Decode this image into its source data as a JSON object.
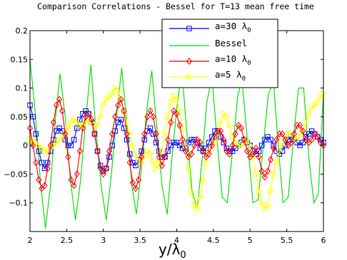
{
  "chart_data": {
    "type": "line",
    "title": "Comparison Correlations - Bessel for T=13 mean free time",
    "xlabel": "y/λ",
    "xlabel_subscript": "0",
    "ylabel": "",
    "xlim": [
      2,
      6
    ],
    "ylim": [
      -0.15,
      0.2
    ],
    "x_ticks": [
      2,
      2.5,
      3,
      3.5,
      4,
      4.5,
      5,
      5.5,
      6
    ],
    "x_tick_labels": [
      "2",
      "2.5",
      "3",
      "3.5",
      "4",
      "4.5",
      "5",
      "5.5",
      "6"
    ],
    "y_ticks": [
      -0.1,
      -0.05,
      0,
      0.05,
      0.1,
      0.15,
      0.2
    ],
    "y_tick_labels": [
      "−0.1",
      "−0.05",
      "0",
      "0.05",
      "0.1",
      "0.15",
      "0.2"
    ],
    "grid": false,
    "legend_position": "top-right",
    "series": [
      {
        "name": "a=30 λ0",
        "legend_text": "a=30 λ",
        "legend_sub": "0",
        "color": "#0000ff",
        "marker": "square",
        "x": [
          2.0,
          2.04,
          2.08,
          2.12,
          2.16,
          2.2,
          2.24,
          2.28,
          2.32,
          2.36,
          2.4,
          2.44,
          2.48,
          2.52,
          2.56,
          2.6,
          2.64,
          2.68,
          2.72,
          2.76,
          2.8,
          2.84,
          2.88,
          2.92,
          2.96,
          3.0,
          3.04,
          3.08,
          3.12,
          3.16,
          3.2,
          3.24,
          3.28,
          3.32,
          3.36,
          3.4,
          3.44,
          3.48,
          3.52,
          3.56,
          3.6,
          3.64,
          3.68,
          3.72,
          3.76,
          3.8,
          3.84,
          3.88,
          3.92,
          3.96,
          4.0,
          4.04,
          4.08,
          4.12,
          4.16,
          4.2,
          4.24,
          4.28,
          4.32,
          4.36,
          4.4,
          4.44,
          4.48,
          4.52,
          4.56,
          4.6,
          4.64,
          4.68,
          4.72,
          4.76,
          4.8,
          4.84,
          4.88,
          4.92,
          4.96,
          5.0,
          5.04,
          5.08,
          5.12,
          5.16,
          5.2,
          5.24,
          5.28,
          5.32,
          5.36,
          5.4,
          5.44,
          5.48,
          5.52,
          5.56,
          5.6,
          5.64,
          5.68,
          5.72,
          5.76,
          5.8,
          5.84,
          5.88,
          5.92,
          5.96,
          6.0
        ],
        "y": [
          0.07,
          0.05,
          0.02,
          -0.01,
          -0.03,
          -0.04,
          -0.03,
          -0.01,
          0.01,
          0.025,
          0.03,
          0.025,
          0.01,
          0.0,
          0.0,
          0.01,
          0.03,
          0.045,
          0.055,
          0.06,
          0.055,
          0.04,
          0.02,
          -0.01,
          -0.035,
          -0.045,
          -0.04,
          -0.02,
          0.0,
          0.025,
          0.04,
          0.045,
          0.03,
          0.01,
          -0.015,
          -0.03,
          -0.035,
          -0.025,
          -0.01,
          0.01,
          0.025,
          0.03,
          0.02,
          0.005,
          -0.01,
          -0.02,
          -0.02,
          -0.01,
          0.0,
          0.005,
          0.005,
          0.0,
          -0.005,
          -0.005,
          0.005,
          0.01,
          0.01,
          0.005,
          -0.005,
          -0.01,
          -0.005,
          0.005,
          0.015,
          0.025,
          0.025,
          0.015,
          0.005,
          -0.005,
          -0.01,
          -0.01,
          -0.005,
          0.0,
          0.005,
          0.01,
          0.005,
          0.0,
          -0.01,
          -0.015,
          -0.01,
          0.0,
          0.01,
          0.015,
          0.01,
          0.0,
          -0.01,
          -0.015,
          -0.01,
          0.0,
          0.01,
          0.015,
          0.01,
          0.005,
          0.0,
          0.005,
          0.015,
          0.02,
          0.025,
          0.02,
          0.015,
          0.01,
          0.005
        ]
      },
      {
        "name": "Bessel",
        "legend_text": "Bessel",
        "legend_sub": "",
        "color": "#00dd00",
        "marker": "none",
        "x": [
          2.0,
          2.07,
          2.14,
          2.21,
          2.28,
          2.35,
          2.41,
          2.48,
          2.55,
          2.62,
          2.69,
          2.76,
          2.83,
          2.89,
          2.97,
          3.04,
          3.11,
          3.18,
          3.25,
          3.32,
          3.39,
          3.45,
          3.52,
          3.59,
          3.66,
          3.73,
          3.8,
          3.87,
          3.93,
          4.0,
          4.07,
          4.14,
          4.21,
          4.28,
          4.35,
          4.41,
          4.48,
          4.55,
          4.62,
          4.69,
          4.76,
          4.83,
          4.89,
          4.97,
          5.04,
          5.11,
          5.18,
          5.25,
          5.32,
          5.39,
          5.45,
          5.52,
          5.59,
          5.66,
          5.73,
          5.8,
          5.87,
          5.93,
          6.0
        ],
        "y": [
          0.15,
          0.06,
          -0.06,
          -0.145,
          -0.07,
          0.05,
          0.125,
          0.05,
          -0.06,
          -0.13,
          -0.06,
          0.045,
          0.14,
          0.04,
          -0.07,
          -0.13,
          -0.05,
          0.05,
          0.135,
          0.04,
          -0.07,
          -0.12,
          -0.04,
          0.06,
          0.13,
          0.03,
          -0.07,
          -0.12,
          -0.03,
          0.065,
          0.13,
          0.02,
          -0.08,
          -0.11,
          -0.02,
          0.075,
          0.12,
          0.01,
          -0.09,
          -0.1,
          -0.01,
          0.085,
          0.115,
          0.0,
          -0.1,
          -0.095,
          0.0,
          0.09,
          0.11,
          -0.01,
          -0.1,
          -0.09,
          0.01,
          0.1,
          0.1,
          -0.02,
          -0.1,
          -0.085,
          0.09
        ]
      },
      {
        "name": "a=10 λ0",
        "legend_text": "a=10 λ",
        "legend_sub": "0",
        "color": "#ff0000",
        "marker": "diamond",
        "x": [
          2.0,
          2.04,
          2.08,
          2.12,
          2.16,
          2.2,
          2.24,
          2.28,
          2.32,
          2.36,
          2.4,
          2.44,
          2.48,
          2.52,
          2.56,
          2.6,
          2.64,
          2.68,
          2.72,
          2.76,
          2.8,
          2.84,
          2.88,
          2.92,
          2.96,
          3.0,
          3.04,
          3.08,
          3.12,
          3.16,
          3.2,
          3.24,
          3.28,
          3.32,
          3.36,
          3.4,
          3.44,
          3.48,
          3.52,
          3.56,
          3.6,
          3.64,
          3.68,
          3.72,
          3.76,
          3.8,
          3.84,
          3.88,
          3.92,
          3.96,
          4.0,
          4.04,
          4.08,
          4.12,
          4.16,
          4.2,
          4.24,
          4.28,
          4.32,
          4.36,
          4.4,
          4.44,
          4.48,
          4.52,
          4.56,
          4.6,
          4.64,
          4.68,
          4.72,
          4.76,
          4.8,
          4.84,
          4.88,
          4.92,
          4.96,
          5.0,
          5.04,
          5.08,
          5.12,
          5.16,
          5.2,
          5.24,
          5.28,
          5.32,
          5.36,
          5.4,
          5.44,
          5.48,
          5.52,
          5.56,
          5.6,
          5.64,
          5.68,
          5.72,
          5.76,
          5.8,
          5.84,
          5.88,
          5.92,
          5.96,
          6.0
        ],
        "y": [
          0.03,
          0.0,
          -0.03,
          -0.06,
          -0.075,
          -0.07,
          -0.04,
          0.0,
          0.04,
          0.07,
          0.08,
          0.06,
          0.02,
          -0.02,
          -0.06,
          -0.07,
          -0.05,
          -0.01,
          0.03,
          0.05,
          0.055,
          0.045,
          0.02,
          -0.01,
          -0.04,
          -0.05,
          -0.04,
          -0.01,
          0.02,
          0.05,
          0.07,
          0.08,
          0.06,
          0.02,
          -0.03,
          -0.065,
          -0.075,
          -0.06,
          -0.02,
          0.02,
          0.05,
          0.06,
          0.05,
          0.02,
          -0.02,
          -0.035,
          -0.02,
          0.01,
          0.04,
          0.06,
          0.055,
          0.035,
          0.01,
          -0.01,
          -0.02,
          -0.015,
          0.0,
          0.01,
          0.005,
          -0.01,
          -0.02,
          -0.015,
          0.0,
          0.015,
          0.025,
          0.025,
          0.01,
          -0.01,
          -0.015,
          0.0,
          0.02,
          0.035,
          0.03,
          0.01,
          -0.01,
          -0.02,
          -0.015,
          -0.005,
          -0.02,
          -0.045,
          -0.055,
          -0.045,
          -0.025,
          -0.005,
          0.01,
          0.02,
          0.02,
          0.01,
          0.0,
          0.005,
          0.02,
          0.035,
          0.035,
          0.025,
          0.01,
          0.005,
          0.01,
          0.02,
          0.015,
          0.005,
          0.0
        ]
      },
      {
        "name": "a=5 λ0",
        "legend_text": "a=5 λ",
        "legend_sub": "0",
        "color": "#ffff00",
        "marker": "triangle-right",
        "x": [
          2.0,
          2.04,
          2.08,
          2.12,
          2.16,
          2.2,
          2.24,
          2.28,
          2.32,
          2.36,
          2.4,
          2.44,
          2.48,
          2.52,
          2.56,
          2.6,
          2.64,
          2.68,
          2.72,
          2.76,
          2.8,
          2.84,
          2.88,
          2.92,
          2.96,
          3.0,
          3.04,
          3.08,
          3.12,
          3.16,
          3.2,
          3.24,
          3.28,
          3.32,
          3.36,
          3.4,
          3.44,
          3.48,
          3.52,
          3.56,
          3.6,
          3.64,
          3.68,
          3.72,
          3.76,
          3.8,
          3.84,
          3.88,
          3.92,
          3.96,
          4.0,
          4.04,
          4.08,
          4.12,
          4.16,
          4.2,
          4.24,
          4.28,
          4.32,
          4.36,
          4.4,
          4.44,
          4.48,
          4.52,
          4.56,
          4.6,
          4.64,
          4.68,
          4.72,
          4.76,
          4.8,
          4.84,
          4.88,
          4.92,
          4.96,
          5.0,
          5.04,
          5.08,
          5.12,
          5.16,
          5.2,
          5.24,
          5.28,
          5.32,
          5.36,
          5.4,
          5.44,
          5.48,
          5.52,
          5.56,
          5.6,
          5.64,
          5.68,
          5.72,
          5.76,
          5.8,
          5.84,
          5.88,
          5.92,
          5.96,
          6.0
        ],
        "y": [
          0.01,
          0.01,
          0.005,
          0.0,
          -0.005,
          -0.01,
          -0.01,
          -0.005,
          0.0,
          0.005,
          0.01,
          0.015,
          0.02,
          0.03,
          0.04,
          0.045,
          0.04,
          0.035,
          0.035,
          0.04,
          0.045,
          0.04,
          0.03,
          0.035,
          0.05,
          0.07,
          0.08,
          0.085,
          0.09,
          0.1,
          0.095,
          0.08,
          0.06,
          0.04,
          0.02,
          0.0,
          -0.015,
          -0.025,
          -0.03,
          -0.02,
          -0.01,
          -0.015,
          -0.03,
          -0.04,
          -0.03,
          -0.01,
          0.02,
          0.05,
          0.075,
          0.085,
          0.08,
          0.06,
          0.03,
          0.0,
          -0.04,
          -0.08,
          -0.105,
          -0.11,
          -0.09,
          -0.06,
          -0.03,
          -0.01,
          0.0,
          0.005,
          0.02,
          0.04,
          0.055,
          0.05,
          0.035,
          0.015,
          0.005,
          0.0,
          0.0,
          0.005,
          0.01,
          0.0,
          -0.02,
          -0.05,
          -0.08,
          -0.1,
          -0.11,
          -0.105,
          -0.08,
          -0.05,
          -0.03,
          -0.01,
          0.0,
          0.01,
          0.02,
          0.02,
          0.015,
          0.01,
          0.015,
          0.025,
          0.04,
          0.055,
          0.065,
          0.07,
          0.075,
          0.085,
          0.09
        ]
      }
    ]
  }
}
